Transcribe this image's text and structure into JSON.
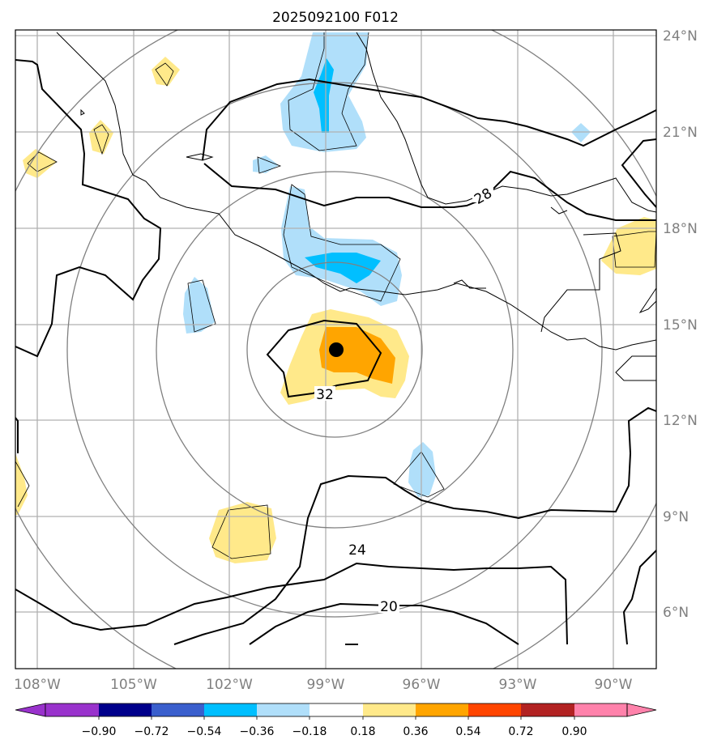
{
  "title": "2025092100 F012",
  "map": {
    "lon_ticks": [
      "108°W",
      "105°W",
      "102°W",
      "99°W",
      "96°W",
      "93°W",
      "90°W"
    ],
    "lat_ticks": [
      "24°N",
      "21°N",
      "18°N",
      "15°N",
      "12°N",
      "9°N",
      "6°N"
    ],
    "contour_labels": [
      "28",
      "32",
      "24",
      "20"
    ],
    "storm_center": {
      "lat": 14.2,
      "lon": -98.6
    },
    "colors": {
      "grid": "#b0b0b0",
      "tick_label": "#808080",
      "range_ring": "#808080",
      "storm_marker": "#000000"
    }
  },
  "colorbar": {
    "labels": [
      "−0.90",
      "−0.72",
      "−0.54",
      "−0.36",
      "−0.18",
      "0.18",
      "0.36",
      "0.54",
      "0.72",
      "0.90"
    ],
    "colors": [
      "#9932CC",
      "#00008B",
      "#3A5FCD",
      "#00BFFF",
      "#B0DFFA",
      "#FFFFFF",
      "#FFE98A",
      "#FFA500",
      "#FF4500",
      "#B22222",
      "#FF82AB"
    ]
  }
}
